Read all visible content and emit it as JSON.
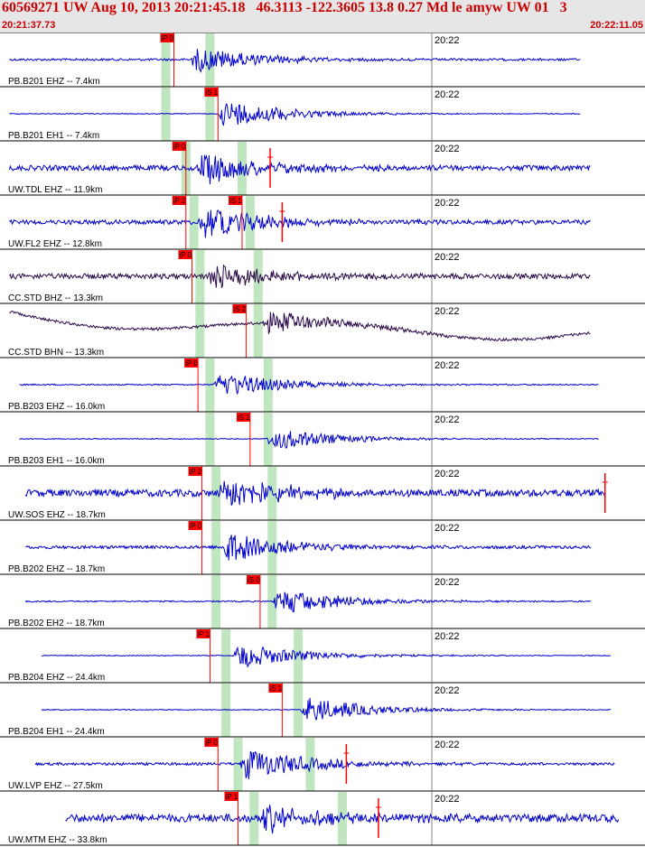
{
  "header": {
    "title": "60569271 UW Aug 10, 2013 20:21:45.18   46.3113 -122.3605 13.8 0.27 Md le amyw UW 01   3",
    "time_start": "20:21:37.73",
    "time_end": "20:22:11.05"
  },
  "colors": {
    "header_bg": "#e6e6e6",
    "header_text": "#cc0000",
    "trace": "#0000cc",
    "trace_dark": "#2b0a4a",
    "pick": "#ff0000",
    "window": "#bfe6bf"
  },
  "minute_label": "20:22",
  "traces": [
    {
      "label": "PB.B201 EHZ -- 7.4km",
      "color": "blue",
      "pick": "iP 0",
      "pick_t": 8.4,
      "start_t": 0.2,
      "end_t": 28.7,
      "noise": 0.05,
      "amp": 0.55,
      "green1_t": 8.0,
      "green2_t": 10.2,
      "sample_t": 9.2
    },
    {
      "label": "PB.B201 EH1 -- 7.4km",
      "color": "blue",
      "pick": "iS 1",
      "pick_t": 10.6,
      "start_t": 0.2,
      "end_t": 28.7,
      "noise": 0.02,
      "amp": 0.6,
      "green1_t": 8.0,
      "green2_t": 10.2,
      "sample_t": 10.6
    },
    {
      "label": "UW.TDL EHZ -- 11.9km",
      "color": "blue",
      "pick": "iP 0",
      "pick_t": 9.0,
      "start_t": 0.2,
      "end_t": 29.2,
      "noise": 0.12,
      "amp": 0.7,
      "green1_t": 9.0,
      "green2_t": 11.8,
      "sample_t": 9.5,
      "extra_pick_t": 13.2
    },
    {
      "label": "UW.FL2 EHZ -- 12.8km",
      "color": "blue",
      "pick": "iP 2",
      "pick_t": 9.0,
      "pick2": "iS 1",
      "pick2_t": 11.8,
      "start_t": 0.2,
      "end_t": 29.2,
      "noise": 0.1,
      "amp": 0.7,
      "green1_t": 9.4,
      "green2_t": 12.2,
      "sample_t": 9.6,
      "extra_pick_t": 13.8
    },
    {
      "label": "CC.STD BHZ -- 13.3km",
      "color": "dark",
      "pick": "iP 0",
      "pick_t": 9.3,
      "start_t": 0.2,
      "end_t": 29.2,
      "noise": 0.12,
      "amp": 0.55,
      "green1_t": 9.7,
      "green2_t": 12.6,
      "sample_t": 10.0
    },
    {
      "label": "CC.STD BHN -- 13.3km",
      "color": "dark",
      "pick": "iS 2",
      "pick_t": 12.0,
      "start_t": 0.2,
      "end_t": 29.2,
      "noise": 0.06,
      "amp": 0.5,
      "green1_t": 9.7,
      "green2_t": 12.6,
      "sample_t": 12.8,
      "drift": true
    },
    {
      "label": "PB.B203 EHZ -- 16.0km",
      "color": "blue",
      "pick": "iP 0",
      "pick_t": 9.6,
      "start_t": 0.7,
      "end_t": 29.6,
      "noise": 0.03,
      "amp": 0.55,
      "green1_t": 10.2,
      "green2_t": 13.1,
      "sample_t": 10.4
    },
    {
      "label": "PB.B203 EH1 -- 16.0km",
      "color": "blue",
      "pick": "iS 1",
      "pick_t": 12.2,
      "start_t": 0.7,
      "end_t": 29.6,
      "noise": 0.02,
      "amp": 0.5,
      "green1_t": 10.2,
      "green2_t": 13.1,
      "sample_t": 13.0
    },
    {
      "label": "UW.SOS EHZ -- 18.7km",
      "color": "blue",
      "pick": "iP 2",
      "pick_t": 9.8,
      "start_t": 1.0,
      "end_t": 29.9,
      "noise": 0.16,
      "amp": 0.75,
      "green1_t": 10.5,
      "green2_t": 13.3,
      "sample_t": 10.6,
      "extra_pick_t": 29.9
    },
    {
      "label": "PB.B202 EHZ -- 18.7km",
      "color": "blue",
      "pick": "iP 0",
      "pick_t": 9.8,
      "start_t": 1.0,
      "end_t": 29.2,
      "noise": 0.07,
      "amp": 0.65,
      "green1_t": 10.5,
      "green2_t": 13.3,
      "sample_t": 10.7
    },
    {
      "label": "PB.B202 EH2 -- 18.7km",
      "color": "blue",
      "pick": "iS 0",
      "pick_t": 12.7,
      "start_t": 1.0,
      "end_t": 29.2,
      "noise": 0.03,
      "amp": 0.6,
      "green1_t": 10.5,
      "green2_t": 13.3,
      "sample_t": 13.3
    },
    {
      "label": "PB.B204 EHZ -- 24.4km",
      "color": "blue",
      "pick": "iP 1",
      "pick_t": 10.2,
      "start_t": 1.8,
      "end_t": 30.2,
      "noise": 0.02,
      "amp": 0.55,
      "green1_t": 11.0,
      "green2_t": 14.6,
      "sample_t": 11.3
    },
    {
      "label": "PB.B204 EH1 -- 24.4km",
      "color": "blue",
      "pick": "iS 1",
      "pick_t": 13.8,
      "start_t": 1.8,
      "end_t": 30.2,
      "noise": 0.02,
      "amp": 0.55,
      "green1_t": 11.0,
      "green2_t": 14.6,
      "sample_t": 14.7
    },
    {
      "label": "UW.LVP EHZ -- 27.5km",
      "color": "blue",
      "pick": "iP 0",
      "pick_t": 10.6,
      "start_t": 1.5,
      "end_t": 30.4,
      "noise": 0.06,
      "amp": 0.7,
      "green1_t": 11.6,
      "green2_t": 15.2,
      "sample_t": 11.7,
      "extra_pick_t": 17.0
    },
    {
      "label": "UW.MTM EHZ -- 33.8km",
      "color": "blue",
      "pick": "iP 1",
      "pick_t": 11.6,
      "start_t": 3.0,
      "end_t": 30.6,
      "noise": 0.18,
      "amp": 0.6,
      "green1_t": 12.4,
      "green2_t": 16.8,
      "sample_t": 12.6,
      "extra_pick_t": 18.6
    }
  ]
}
